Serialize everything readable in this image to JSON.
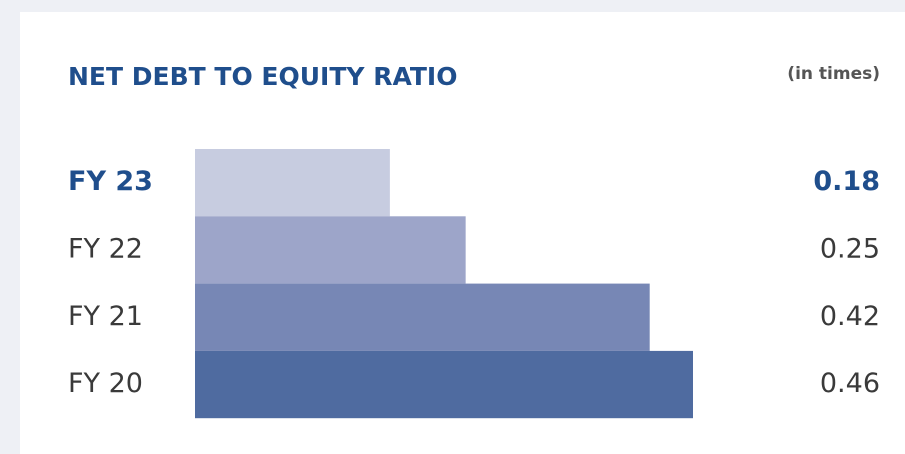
{
  "chart_data": {
    "type": "bar",
    "orientation": "horizontal",
    "title": "NET DEBT TO EQUITY RATIO",
    "unit": "(in times)",
    "categories": [
      "FY 23",
      "FY 22",
      "FY 21",
      "FY 20"
    ],
    "values": [
      0.18,
      0.25,
      0.42,
      0.46
    ],
    "colors": [
      "#c7cce0",
      "#9da5c9",
      "#7787b5",
      "#4f6ba0"
    ]
  }
}
